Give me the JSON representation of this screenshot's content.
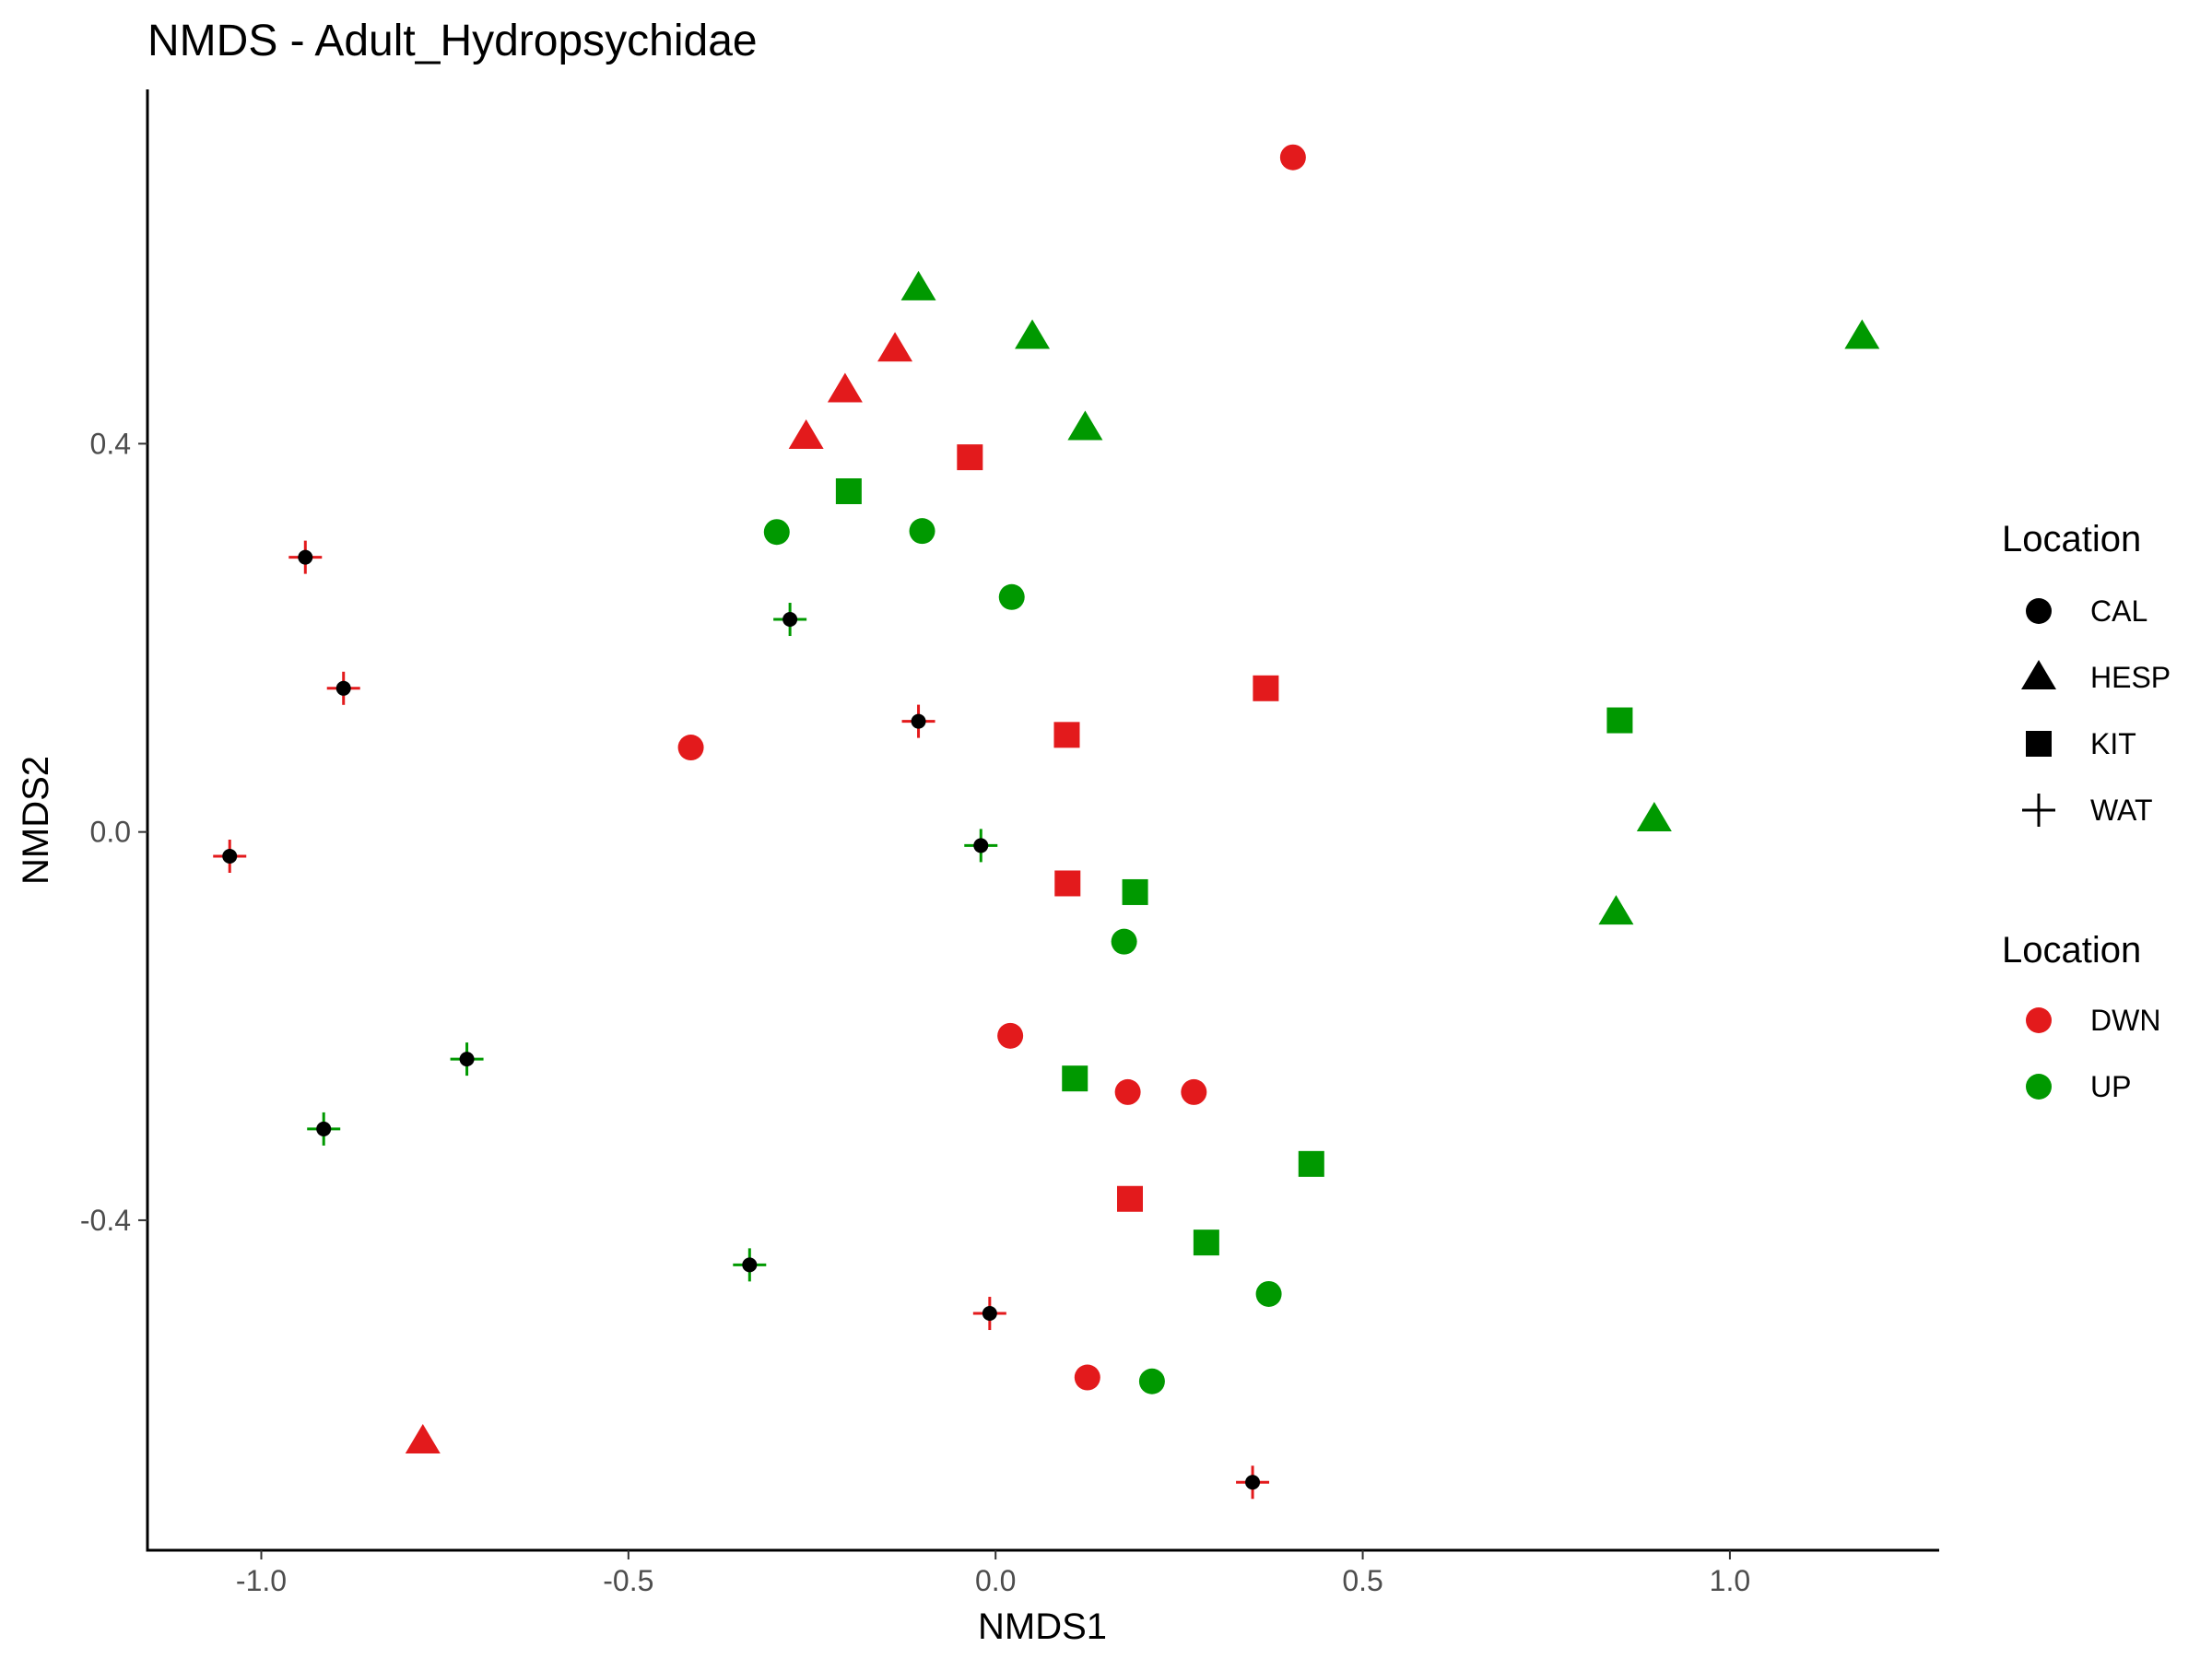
{
  "chart_data": {
    "type": "scatter",
    "title": "NMDS - Adult_Hydropsychidae",
    "xlabel": "NMDS1",
    "ylabel": "NMDS2",
    "xlim": [
      -1.155,
      1.28
    ],
    "ylim": [
      -0.74,
      0.765
    ],
    "xticks": [
      -1.0,
      -0.5,
      0.0,
      0.5,
      1.0
    ],
    "xtick_labels": [
      "-1.0",
      "-0.5",
      "0.0",
      "0.5",
      "1.0"
    ],
    "yticks": [
      -0.4,
      0.0,
      0.4
    ],
    "ytick_labels": [
      "-0.4",
      "0.0",
      "0.4"
    ],
    "grid": false,
    "legend_position": "right",
    "shape_legend": {
      "title": "Location",
      "items": [
        {
          "label": "CAL",
          "shape": "circle"
        },
        {
          "label": "HESP",
          "shape": "triangle"
        },
        {
          "label": "KIT",
          "shape": "square"
        },
        {
          "label": "WAT",
          "shape": "cross"
        }
      ]
    },
    "color_legend": {
      "title": "Location",
      "items": [
        {
          "label": "DWN",
          "color": "#e31a1c"
        },
        {
          "label": "UP",
          "color": "#009900"
        }
      ]
    },
    "colors": {
      "DWN": "#e31a1c",
      "UP": "#009900"
    },
    "points": [
      {
        "x": 0.405,
        "y": 0.695,
        "shape": "CAL",
        "group": "DWN"
      },
      {
        "x": -0.415,
        "y": 0.087,
        "shape": "CAL",
        "group": "DWN"
      },
      {
        "x": 0.02,
        "y": -0.21,
        "shape": "CAL",
        "group": "DWN"
      },
      {
        "x": 0.18,
        "y": -0.268,
        "shape": "CAL",
        "group": "DWN"
      },
      {
        "x": 0.27,
        "y": -0.268,
        "shape": "CAL",
        "group": "DWN"
      },
      {
        "x": 0.125,
        "y": -0.562,
        "shape": "CAL",
        "group": "DWN"
      },
      {
        "x": -0.298,
        "y": 0.309,
        "shape": "CAL",
        "group": "UP"
      },
      {
        "x": -0.1,
        "y": 0.31,
        "shape": "CAL",
        "group": "UP"
      },
      {
        "x": 0.022,
        "y": 0.242,
        "shape": "CAL",
        "group": "UP"
      },
      {
        "x": 0.175,
        "y": -0.113,
        "shape": "CAL",
        "group": "UP"
      },
      {
        "x": 0.372,
        "y": -0.476,
        "shape": "CAL",
        "group": "UP"
      },
      {
        "x": 0.213,
        "y": -0.566,
        "shape": "CAL",
        "group": "UP"
      },
      {
        "x": -0.205,
        "y": 0.455,
        "shape": "HESP",
        "group": "DWN"
      },
      {
        "x": -0.137,
        "y": 0.497,
        "shape": "HESP",
        "group": "DWN"
      },
      {
        "x": -0.258,
        "y": 0.407,
        "shape": "HESP",
        "group": "DWN"
      },
      {
        "x": -0.78,
        "y": -0.628,
        "shape": "HESP",
        "group": "DWN"
      },
      {
        "x": -0.105,
        "y": 0.56,
        "shape": "HESP",
        "group": "UP"
      },
      {
        "x": 0.05,
        "y": 0.51,
        "shape": "HESP",
        "group": "UP"
      },
      {
        "x": 0.122,
        "y": 0.416,
        "shape": "HESP",
        "group": "UP"
      },
      {
        "x": 1.18,
        "y": 0.51,
        "shape": "HESP",
        "group": "UP"
      },
      {
        "x": 0.897,
        "y": 0.013,
        "shape": "HESP",
        "group": "UP"
      },
      {
        "x": 0.845,
        "y": -0.083,
        "shape": "HESP",
        "group": "UP"
      },
      {
        "x": -0.035,
        "y": 0.386,
        "shape": "KIT",
        "group": "DWN"
      },
      {
        "x": 0.368,
        "y": 0.148,
        "shape": "KIT",
        "group": "DWN"
      },
      {
        "x": 0.097,
        "y": 0.1,
        "shape": "KIT",
        "group": "DWN"
      },
      {
        "x": 0.098,
        "y": -0.053,
        "shape": "KIT",
        "group": "DWN"
      },
      {
        "x": 0.183,
        "y": -0.378,
        "shape": "KIT",
        "group": "DWN"
      },
      {
        "x": -0.2,
        "y": 0.351,
        "shape": "KIT",
        "group": "UP"
      },
      {
        "x": 0.85,
        "y": 0.115,
        "shape": "KIT",
        "group": "UP"
      },
      {
        "x": 0.19,
        "y": -0.062,
        "shape": "KIT",
        "group": "UP"
      },
      {
        "x": 0.108,
        "y": -0.254,
        "shape": "KIT",
        "group": "UP"
      },
      {
        "x": 0.43,
        "y": -0.342,
        "shape": "KIT",
        "group": "UP"
      },
      {
        "x": 0.287,
        "y": -0.423,
        "shape": "KIT",
        "group": "UP"
      },
      {
        "x": -0.94,
        "y": 0.283,
        "shape": "WAT",
        "group": "DWN"
      },
      {
        "x": -0.888,
        "y": 0.148,
        "shape": "WAT",
        "group": "DWN"
      },
      {
        "x": -0.105,
        "y": 0.114,
        "shape": "WAT",
        "group": "DWN"
      },
      {
        "x": -1.043,
        "y": -0.025,
        "shape": "WAT",
        "group": "DWN"
      },
      {
        "x": -0.008,
        "y": -0.496,
        "shape": "WAT",
        "group": "DWN"
      },
      {
        "x": 0.35,
        "y": -0.67,
        "shape": "WAT",
        "group": "DWN"
      },
      {
        "x": -0.28,
        "y": 0.219,
        "shape": "WAT",
        "group": "UP"
      },
      {
        "x": -0.02,
        "y": -0.014,
        "shape": "WAT",
        "group": "UP"
      },
      {
        "x": -0.72,
        "y": -0.234,
        "shape": "WAT",
        "group": "UP"
      },
      {
        "x": -0.915,
        "y": -0.306,
        "shape": "WAT",
        "group": "UP"
      },
      {
        "x": -0.335,
        "y": -0.446,
        "shape": "WAT",
        "group": "UP"
      }
    ]
  }
}
